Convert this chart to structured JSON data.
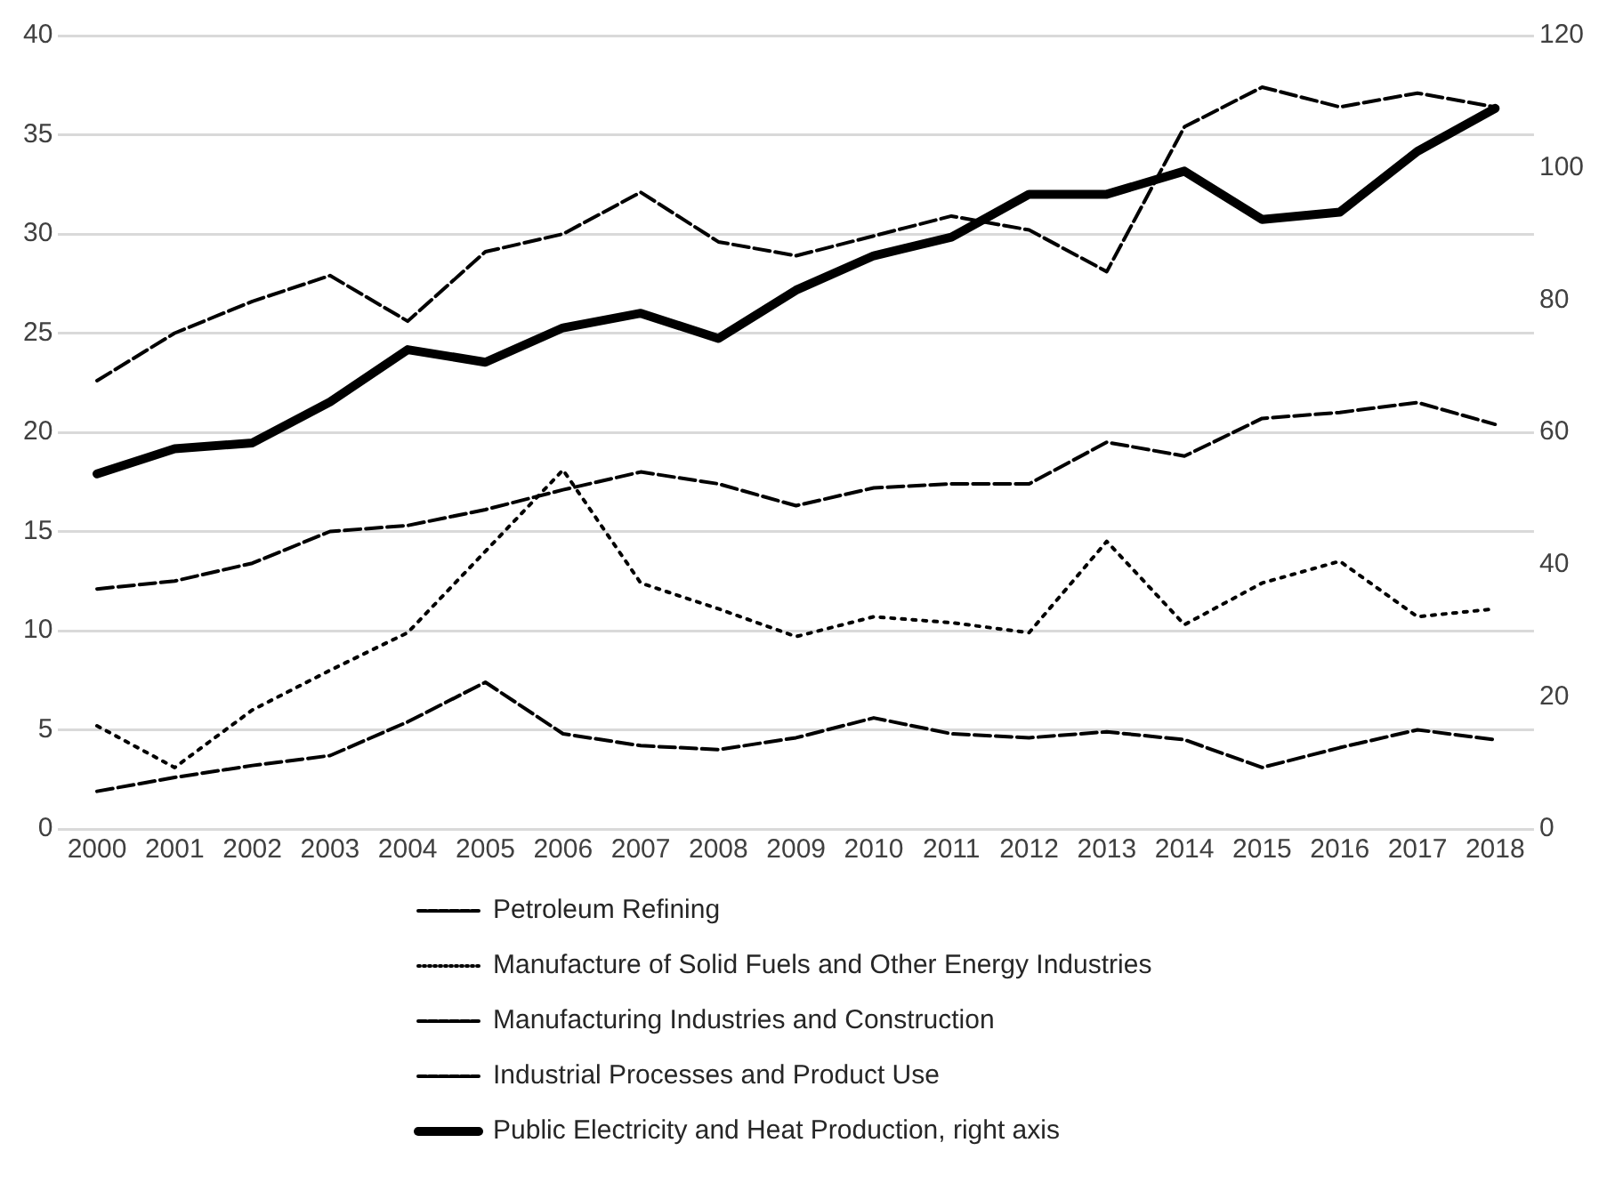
{
  "chart_data": {
    "type": "line",
    "categories": [
      "2000",
      "2001",
      "2002",
      "2003",
      "2004",
      "2005",
      "2006",
      "2007",
      "2008",
      "2009",
      "2010",
      "2011",
      "2012",
      "2013",
      "2014",
      "2015",
      "2016",
      "2017",
      "2018"
    ],
    "series": [
      {
        "name": "Petroleum Refining",
        "color": "#000000",
        "line_style": "dashed",
        "values": [
          1.9,
          2.6,
          3.2,
          3.7,
          5.4,
          7.4,
          4.8,
          4.2,
          4.0,
          4.6,
          5.6,
          4.8,
          4.6,
          4.9,
          4.5,
          3.1,
          4.1,
          5.0,
          4.5
        ]
      },
      {
        "name": "Manufacture of Solid Fuels and Other Energy Industries",
        "color": "#000000",
        "line_style": "dotted",
        "values": [
          5.2,
          3.1,
          6.0,
          8.0,
          9.9,
          14.0,
          18.1,
          12.4,
          11.1,
          9.7,
          10.7,
          10.4,
          9.9,
          14.5,
          10.3,
          12.4,
          13.5,
          10.7,
          11.1
        ]
      },
      {
        "name": "Manufacturing Industries and Construction",
        "color": "#000000",
        "line_style": "dashed",
        "values": [
          22.6,
          25.0,
          26.6,
          27.9,
          25.6,
          29.1,
          30.0,
          32.1,
          29.6,
          28.9,
          29.9,
          30.9,
          30.2,
          28.1,
          35.4,
          37.4,
          36.4,
          37.1,
          36.4
        ]
      },
      {
        "name": "Industrial Processes and Product Use",
        "color": "#000000",
        "line_style": "dashed",
        "values": [
          12.1,
          12.5,
          13.4,
          15.0,
          15.3,
          16.1,
          17.1,
          18.0,
          17.4,
          16.3,
          17.2,
          17.4,
          17.4,
          19.5,
          18.8,
          20.7,
          21.0,
          21.5,
          20.4
        ]
      },
      {
        "name": "Public Electricity and Heat Production, right axis",
        "color": "#000000",
        "line_style": "solid",
        "axis": "y2",
        "values": [
          53.7,
          57.5,
          58.4,
          64.6,
          72.5,
          70.6,
          75.8,
          78.0,
          74.2,
          81.5,
          86.7,
          89.5,
          96.0,
          96.0,
          99.5,
          92.2,
          93.3,
          102.5,
          109.0
        ]
      }
    ],
    "ylim": [
      0,
      40
    ],
    "yticks": [
      0,
      5,
      10,
      15,
      20,
      25,
      30,
      35,
      40
    ],
    "y2lim": [
      0,
      120
    ],
    "y2ticks": [
      0,
      20,
      40,
      60,
      80,
      100,
      120
    ],
    "grid": "y",
    "legend": "bottom",
    "marker": "none"
  }
}
